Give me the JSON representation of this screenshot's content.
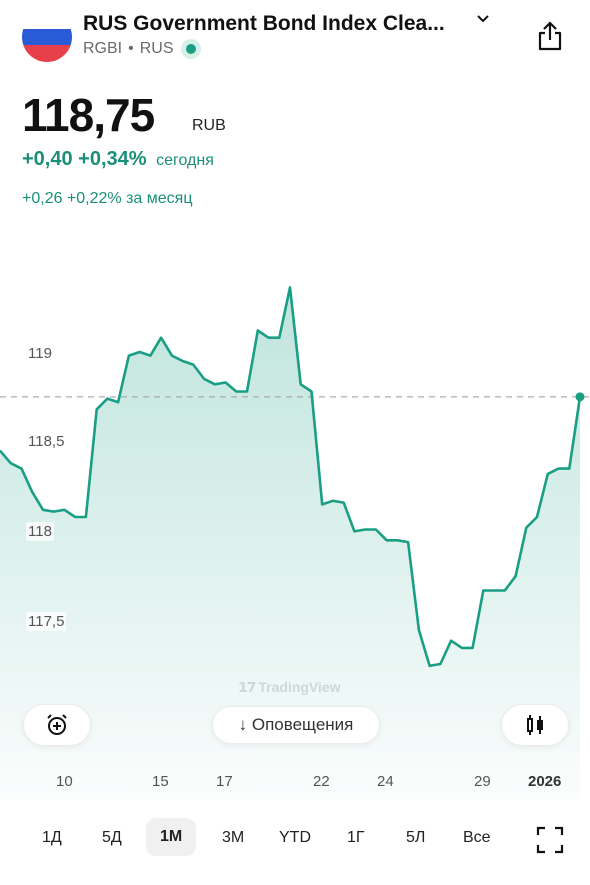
{
  "header": {
    "title": "RUS Government Bond Index Clea...",
    "ticker": "RGBI",
    "exchange": "RUS",
    "separator": "•"
  },
  "quote": {
    "price": "118,75",
    "currency": "RUB",
    "change_today": "+0,40 +0,34%",
    "today_label": "сегодня",
    "change_month": "+0,26 +0,22% за месяц"
  },
  "colors": {
    "accent": "#1a9e84",
    "positive_text": "#1a8f77",
    "flag_white": "#ffffff",
    "flag_blue": "#2a5bd7",
    "flag_red": "#e8404a"
  },
  "chart_data": {
    "type": "area",
    "y_ticks": [
      "119",
      "118,5",
      "118",
      "117,5"
    ],
    "x_ticks": [
      "10",
      "15",
      "17",
      "22",
      "24",
      "29",
      "2026"
    ],
    "ylim": [
      117.1,
      119.5
    ],
    "last_value": 118.75,
    "dashed_reference": 118.75,
    "values": [
      118.45,
      118.38,
      118.35,
      118.22,
      118.12,
      118.11,
      118.12,
      118.08,
      118.08,
      118.68,
      118.74,
      118.72,
      118.98,
      119.0,
      118.98,
      119.08,
      118.98,
      118.95,
      118.93,
      118.85,
      118.82,
      118.83,
      118.78,
      118.78,
      119.12,
      119.08,
      119.08,
      119.36,
      118.82,
      118.78,
      118.15,
      118.17,
      118.16,
      118.0,
      118.01,
      118.01,
      117.95,
      117.95,
      117.94,
      117.45,
      117.25,
      117.26,
      117.39,
      117.35,
      117.35,
      117.67,
      117.67,
      117.67,
      117.75,
      118.02,
      118.08,
      118.32,
      118.35,
      118.35,
      118.75
    ],
    "watermark": "TradingView"
  },
  "controls": {
    "alerts_label": "↓ Оповещения",
    "alarm_icon": "alarm-plus-icon",
    "chart_type_icon": "candlestick-icon"
  },
  "timeframes": [
    {
      "label": "1Д",
      "active": false
    },
    {
      "label": "5Д",
      "active": false
    },
    {
      "label": "1М",
      "active": true
    },
    {
      "label": "3М",
      "active": false
    },
    {
      "label": "YTD",
      "active": false
    },
    {
      "label": "1Г",
      "active": false
    },
    {
      "label": "5Л",
      "active": false
    },
    {
      "label": "Все",
      "active": false
    }
  ]
}
